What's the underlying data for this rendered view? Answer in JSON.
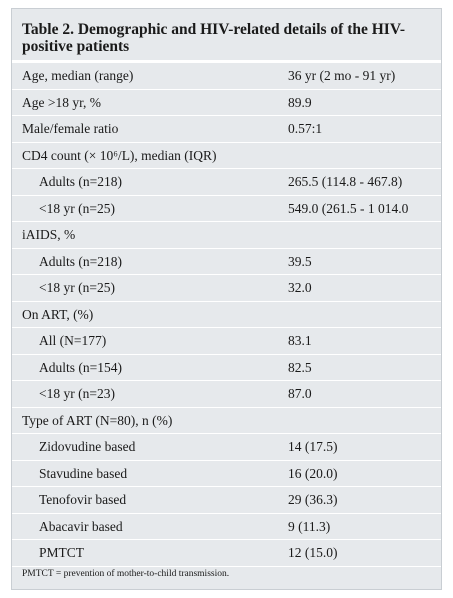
{
  "title": "Table 2. Demographic and HIV-related details of the HIV-positive patients",
  "rows": [
    {
      "label": "Age, median (range)",
      "value": "36 yr (2 mo - 91 yr)",
      "indent": 0
    },
    {
      "label": "Age >18 yr, %",
      "value": "89.9",
      "indent": 0
    },
    {
      "label": "Male/female ratio",
      "value": "0.57:1",
      "indent": 0
    },
    {
      "label": "CD4 count (× 10⁶/L), median (IQR)",
      "value": "",
      "indent": 0
    },
    {
      "label": "Adults (n=218)",
      "value": "265.5 (114.8 - 467.8)",
      "indent": 1
    },
    {
      "label": "<18 yr (n=25)",
      "value": "549.0 (261.5 - 1 014.0",
      "indent": 1
    },
    {
      "label": "iAIDS, %",
      "value": "",
      "indent": 0
    },
    {
      "label": "Adults (n=218)",
      "value": "39.5",
      "indent": 1
    },
    {
      "label": "<18 yr (n=25)",
      "value": "32.0",
      "indent": 1
    },
    {
      "label": "On ART, (%)",
      "value": "",
      "indent": 0
    },
    {
      "label": "All (N=177)",
      "value": "83.1",
      "indent": 1
    },
    {
      "label": "Adults (n=154)",
      "value": "82.5",
      "indent": 1
    },
    {
      "label": "<18 yr (n=23)",
      "value": "87.0",
      "indent": 1
    },
    {
      "label": "Type of ART (N=80), n (%)",
      "value": "",
      "indent": 0
    },
    {
      "label": "Zidovudine based",
      "value": "14 (17.5)",
      "indent": 1
    },
    {
      "label": "Stavudine based",
      "value": "16 (20.0)",
      "indent": 1
    },
    {
      "label": "Tenofovir based",
      "value": "29 (36.3)",
      "indent": 1
    },
    {
      "label": "Abacavir based",
      "value": "9 (11.3)",
      "indent": 1
    },
    {
      "label": "PMTCT",
      "value": "12 (15.0)",
      "indent": 1
    }
  ],
  "footnote": "PMTCT = prevention of mother-to-child transmission."
}
